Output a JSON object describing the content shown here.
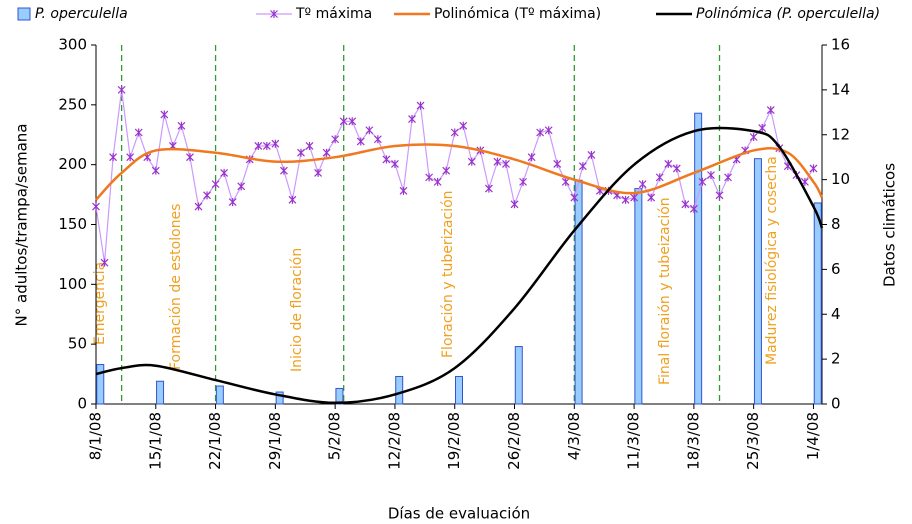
{
  "chart_data": {
    "type": "bar",
    "x_label": "Días de evaluación",
    "y_label": "N° adultos/trampa/semana",
    "y2_label": "Datos climáticos",
    "xlim": [
      "8/1/08",
      "2/4/08"
    ],
    "xticks": [
      "8/1/08",
      "15/1/08",
      "22/1/08",
      "29/1/08",
      "5/2/08",
      "12/2/08",
      "19/2/08",
      "26/2/08",
      "4/3/08",
      "11/3/08",
      "18/3/08",
      "25/3/08",
      "1/4/08"
    ],
    "ylim": [
      0,
      300
    ],
    "yticks": [
      0,
      50,
      100,
      150,
      200,
      250,
      300
    ],
    "y2lim": [
      0,
      16
    ],
    "y2ticks": [
      0,
      2,
      4,
      6,
      8,
      10,
      12,
      14,
      16
    ],
    "series": [
      {
        "name": "P. operculella",
        "type": "bar",
        "axis": "y",
        "color": "#99ccff",
        "x": [
          "8/1/08",
          "15/1/08",
          "22/1/08",
          "29/1/08",
          "5/2/08",
          "12/2/08",
          "19/2/08",
          "26/2/08",
          "4/3/08",
          "11/3/08",
          "18/3/08",
          "25/3/08",
          "1/4/08"
        ],
        "values": [
          33,
          19,
          15,
          10,
          13,
          23,
          23,
          48,
          187,
          180,
          243,
          205,
          168
        ]
      },
      {
        "name": "Tº máxima",
        "type": "line",
        "marker": "x",
        "axis": "y2",
        "color": "#cc99ff",
        "x": [
          "8/1/08",
          "9/1/08",
          "10/1/08",
          "11/1/08",
          "12/1/08",
          "13/1/08",
          "14/1/08",
          "15/1/08",
          "16/1/08",
          "17/1/08",
          "18/1/08",
          "19/1/08",
          "20/1/08",
          "21/1/08",
          "22/1/08",
          "23/1/08",
          "24/1/08",
          "25/1/08",
          "26/1/08",
          "27/1/08",
          "28/1/08",
          "29/1/08",
          "30/1/08",
          "31/1/08",
          "1/2/08",
          "2/2/08",
          "3/2/08",
          "4/2/08",
          "5/2/08",
          "6/2/08",
          "7/2/08",
          "8/2/08",
          "9/2/08",
          "10/2/08",
          "11/2/08",
          "12/2/08",
          "13/2/08",
          "14/2/08",
          "15/2/08",
          "16/2/08",
          "17/2/08",
          "18/2/08",
          "19/2/08",
          "20/2/08",
          "21/2/08",
          "22/2/08",
          "23/2/08",
          "24/2/08",
          "25/2/08",
          "26/2/08",
          "27/2/08",
          "28/2/08",
          "29/2/08",
          "1/3/08",
          "2/3/08",
          "3/3/08",
          "4/3/08",
          "5/3/08",
          "6/3/08",
          "7/3/08",
          "8/3/08",
          "9/3/08",
          "10/3/08",
          "11/3/08",
          "12/3/08",
          "13/3/08",
          "14/3/08",
          "15/3/08",
          "16/3/08",
          "17/3/08",
          "18/3/08",
          "19/3/08",
          "20/3/08",
          "21/3/08",
          "22/3/08",
          "23/3/08",
          "24/3/08",
          "25/3/08",
          "26/3/08",
          "27/3/08",
          "28/3/08",
          "29/3/08",
          "30/3/08",
          "31/3/08",
          "1/4/08"
        ],
        "values": [
          8.8,
          6.3,
          11.0,
          14.0,
          11.0,
          12.1,
          11.0,
          10.4,
          12.9,
          11.5,
          12.4,
          11.0,
          8.8,
          9.3,
          9.8,
          10.3,
          9.0,
          9.7,
          10.9,
          11.5,
          11.5,
          11.6,
          10.4,
          9.1,
          11.2,
          11.5,
          10.3,
          11.2,
          11.8,
          12.6,
          12.6,
          11.7,
          12.2,
          11.8,
          10.9,
          10.7,
          9.5,
          12.7,
          13.3,
          10.1,
          9.9,
          10.4,
          12.1,
          12.4,
          10.8,
          11.3,
          9.6,
          10.8,
          10.7,
          8.9,
          9.9,
          11.0,
          12.1,
          12.2,
          10.7,
          9.9,
          9.2,
          10.6,
          11.1,
          9.5,
          9.5,
          9.3,
          9.1,
          9.2,
          9.8,
          9.2,
          10.1,
          10.7,
          10.5,
          8.9,
          8.7,
          9.9,
          10.2,
          9.3,
          10.1,
          10.9,
          11.3,
          11.9,
          12.3,
          13.1,
          11.4,
          10.6,
          10.2,
          9.9,
          10.5
        ]
      },
      {
        "name": "Polinómica (Tº máxima)",
        "type": "curve",
        "axis": "y2",
        "color": "#f07820",
        "x": [
          "8/1/08",
          "11/1/08",
          "15/1/08",
          "22/1/08",
          "29/1/08",
          "5/2/08",
          "12/2/08",
          "19/2/08",
          "26/2/08",
          "4/3/08",
          "11/3/08",
          "18/3/08",
          "25/3/08",
          "29/3/08",
          "1/4/08",
          "2/4/08"
        ],
        "values": [
          9.1,
          10.3,
          11.3,
          11.2,
          10.8,
          11.0,
          11.5,
          11.5,
          10.9,
          10.0,
          9.4,
          10.3,
          11.3,
          11.2,
          9.9,
          9.2
        ]
      },
      {
        "name": "Polinómica (P. operculella)",
        "type": "curve",
        "axis": "y",
        "color": "#000000",
        "x": [
          "8/1/08",
          "11/1/08",
          "15/1/08",
          "22/1/08",
          "29/1/08",
          "5/2/08",
          "12/2/08",
          "19/2/08",
          "26/2/08",
          "4/3/08",
          "11/3/08",
          "18/3/08",
          "25/3/08",
          "28/3/08",
          "1/4/08",
          "2/4/08"
        ],
        "values": [
          25,
          30,
          32,
          20,
          8,
          1,
          8,
          30,
          80,
          145,
          200,
          228,
          228,
          215,
          165,
          147
        ]
      }
    ],
    "phases": [
      {
        "x": "11/1/08",
        "label": "Emergencia"
      },
      {
        "x": "22/1/08",
        "label": "Formación de estolones"
      },
      {
        "x": "6/2/08",
        "label": "Inicio de floración"
      },
      {
        "x": "4/3/08",
        "label": "Floración y tuberización"
      },
      {
        "x": "21/3/08",
        "label": "Final floraión y tubeización"
      },
      {
        "label": "Madurez fisiológica y cosecha"
      }
    ],
    "phase_line_color": "#339933",
    "phase_label_color": "#f0a020"
  }
}
